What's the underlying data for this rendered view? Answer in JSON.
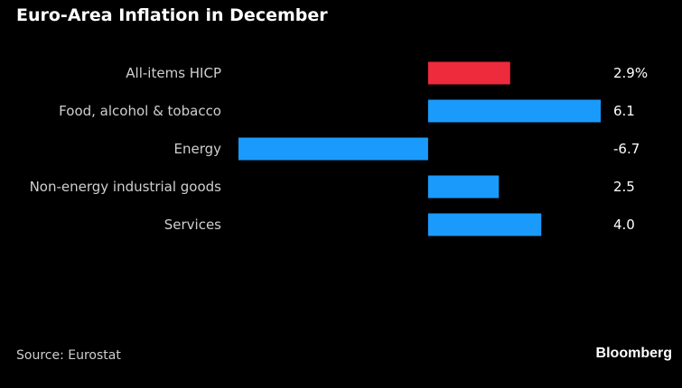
{
  "title": "Euro-Area Inflation in December",
  "source": "Source: Eurostat",
  "logo": "Bloomberg",
  "chart_data": {
    "type": "bar",
    "orientation": "horizontal",
    "categories": [
      "All-items HICP",
      "Food, alcohol & tobacco",
      "Energy",
      "Non-energy industrial goods",
      "Services"
    ],
    "values": [
      2.9,
      6.1,
      -6.7,
      2.5,
      4.0
    ],
    "value_labels": [
      "2.9%",
      "6.1",
      "-6.7",
      "2.5",
      "4.0"
    ],
    "colors": [
      "#ee2a3d",
      "#1a9bfc",
      "#1a9bfc",
      "#1a9bfc",
      "#1a9bfc"
    ],
    "xlim": [
      -6.7,
      6.1
    ],
    "grid": false,
    "legend": "none"
  }
}
